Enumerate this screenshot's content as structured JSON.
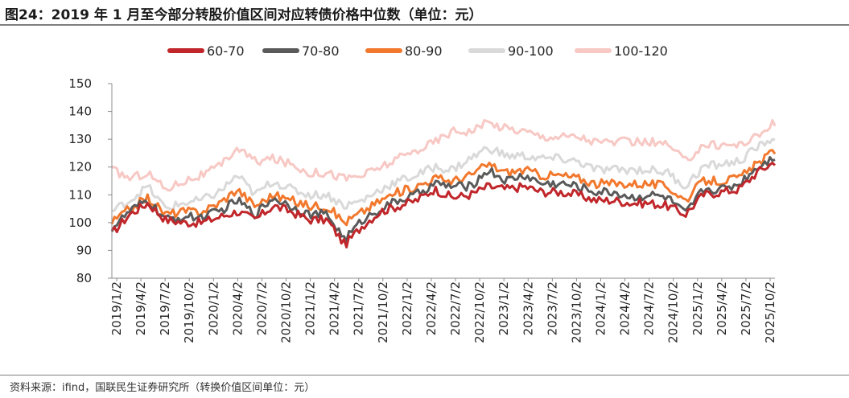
{
  "header": {
    "title": "图24：2019 年 1 月至今部分转股价值区间对应转债价格中位数（单位：元）"
  },
  "footer": {
    "source": "资料来源：ifind，国联民生证券研究所（转换价值区间单位：元）"
  },
  "colors": {
    "60-70": "#c0262a",
    "70-80": "#5a5a5a",
    "80-90": "#f2782d",
    "90-100": "#d9d9d9",
    "100-120": "#f7c8c4"
  },
  "chart_data": {
    "type": "line",
    "title": "",
    "xlabel": "",
    "ylabel": "",
    "ylim": [
      80,
      150
    ],
    "yticks": [
      80,
      90,
      100,
      110,
      120,
      130,
      140,
      150
    ],
    "grid": false,
    "legend_position": "top",
    "xtick_labels": [
      "2019/1/2",
      "2019/4/2",
      "2019/7/2",
      "2019/10/2",
      "2020/1/2",
      "2020/4/2",
      "2020/7/2",
      "2020/10/2",
      "2021/1/2",
      "2021/4/2",
      "2021/7/2",
      "2021/10/2",
      "2022/1/2",
      "2022/4/2",
      "2022/7/2",
      "2022/10/2",
      "2023/1/2",
      "2023/4/2",
      "2023/7/2",
      "2023/10/2",
      "2024/1/2",
      "2024/4/2",
      "2024/7/2",
      "2024/10/2",
      "2025/1/2",
      "2025/4/2",
      "2025/7/2",
      "2025/10/2"
    ],
    "series": [
      {
        "name": "60-70",
        "values": [
          96,
          103,
          107,
          101,
          100,
          100,
          102,
          104,
          101,
          106,
          104,
          101,
          101,
          92,
          99,
          104,
          106,
          108,
          112,
          109,
          110,
          113,
          112,
          113,
          111,
          111,
          110,
          108,
          108,
          107,
          107,
          106,
          103,
          110,
          111,
          112,
          118,
          122
        ]
      },
      {
        "name": "70-80",
        "values": [
          98,
          104,
          108,
          101,
          102,
          102,
          104,
          108,
          103,
          109,
          106,
          103,
          103,
          94,
          101,
          105,
          108,
          110,
          114,
          113,
          113,
          119,
          115,
          117,
          114,
          114,
          113,
          111,
          111,
          109,
          110,
          109,
          103,
          112,
          112,
          114,
          120,
          124
        ]
      },
      {
        "name": "80-90",
        "values": [
          100,
          105,
          109,
          103,
          104,
          104,
          107,
          112,
          106,
          110,
          108,
          106,
          106,
          100,
          104,
          108,
          111,
          113,
          116,
          115,
          117,
          121,
          118,
          119,
          117,
          117,
          116,
          114,
          114,
          114,
          114,
          113,
          108,
          115,
          115,
          116,
          121,
          126
        ]
      },
      {
        "name": "90-100",
        "values": [
          104,
          108,
          113,
          105,
          107,
          108,
          111,
          117,
          110,
          115,
          112,
          110,
          110,
          106,
          108,
          112,
          115,
          117,
          120,
          119,
          123,
          127,
          124,
          124,
          123,
          123,
          122,
          119,
          119,
          119,
          119,
          118,
          113,
          120,
          121,
          122,
          127,
          131
        ]
      },
      {
        "name": "100-120",
        "values": [
          119,
          116,
          118,
          112,
          115,
          117,
          120,
          127,
          122,
          123,
          121,
          118,
          118,
          116,
          117,
          120,
          123,
          126,
          129,
          133,
          133,
          136,
          134,
          133,
          131,
          131,
          131,
          129,
          129,
          129,
          129,
          128,
          122,
          128,
          128,
          128,
          131,
          136
        ]
      }
    ]
  }
}
